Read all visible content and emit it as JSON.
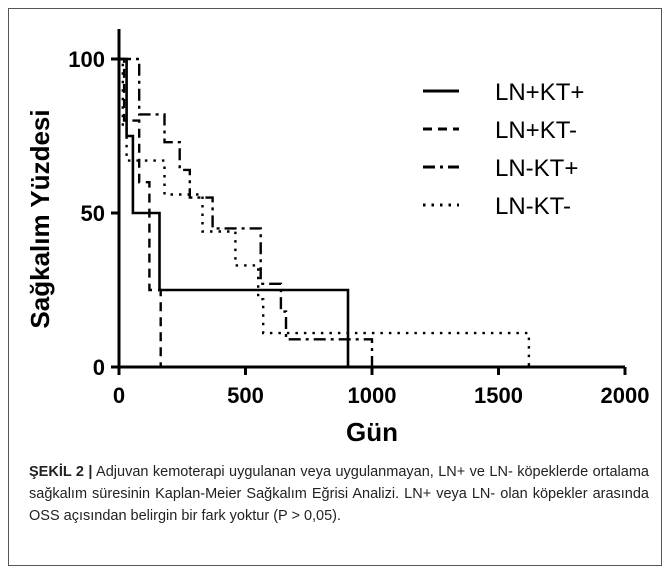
{
  "chart_data": {
    "type": "line",
    "title": "",
    "xlabel": "Gün",
    "ylabel": "Sağkalım Yüzdesi",
    "xlim": [
      0,
      2000
    ],
    "ylim": [
      0,
      100
    ],
    "xticks": [
      "0",
      "500",
      "1000",
      "1500",
      "2000"
    ],
    "yticks": [
      "0",
      "50",
      "100"
    ],
    "grid": false,
    "legend_position": "top-right",
    "series": [
      {
        "name": "LN+KT+",
        "style": "solid",
        "color": "#000000",
        "points": [
          [
            0,
            100
          ],
          [
            30,
            100
          ],
          [
            30,
            75
          ],
          [
            55,
            75
          ],
          [
            55,
            50
          ],
          [
            160,
            50
          ],
          [
            160,
            25
          ],
          [
            905,
            25
          ],
          [
            905,
            0
          ]
        ]
      },
      {
        "name": "LN+KT-",
        "style": "dashed",
        "color": "#000000",
        "points": [
          [
            0,
            100
          ],
          [
            20,
            100
          ],
          [
            20,
            80
          ],
          [
            80,
            80
          ],
          [
            80,
            60
          ],
          [
            120,
            60
          ],
          [
            120,
            25
          ],
          [
            165,
            25
          ],
          [
            165,
            0
          ]
        ]
      },
      {
        "name": "LN-KT+",
        "style": "dashdot",
        "color": "#000000",
        "points": [
          [
            0,
            100
          ],
          [
            80,
            100
          ],
          [
            80,
            82
          ],
          [
            180,
            82
          ],
          [
            180,
            73
          ],
          [
            240,
            73
          ],
          [
            240,
            64
          ],
          [
            280,
            64
          ],
          [
            280,
            55
          ],
          [
            370,
            55
          ],
          [
            370,
            45
          ],
          [
            560,
            45
          ],
          [
            560,
            27
          ],
          [
            640,
            27
          ],
          [
            640,
            18
          ],
          [
            660,
            18
          ],
          [
            660,
            9
          ],
          [
            1000,
            9
          ],
          [
            1000,
            0
          ]
        ]
      },
      {
        "name": "LN-KT-",
        "style": "dotted",
        "color": "#000000",
        "points": [
          [
            0,
            100
          ],
          [
            15,
            100
          ],
          [
            15,
            78
          ],
          [
            30,
            78
          ],
          [
            30,
            67
          ],
          [
            180,
            67
          ],
          [
            180,
            56
          ],
          [
            330,
            56
          ],
          [
            330,
            44
          ],
          [
            460,
            44
          ],
          [
            460,
            33
          ],
          [
            550,
            33
          ],
          [
            550,
            22
          ],
          [
            570,
            22
          ],
          [
            570,
            11
          ],
          [
            1620,
            11
          ],
          [
            1620,
            0
          ]
        ]
      }
    ]
  },
  "caption": {
    "label": "ŞEKİL 2 |",
    "text": " Adjuvan kemoterapi uygulanan veya uygulanmayan, LN+ ve LN- köpeklerde ortalama sağkalım süresinin Kaplan-Meier Sağkalım Eğrisi Analizi. LN+ veya LN- olan köpekler arasında OSS açısından belirgin bir fark yoktur (P > 0,05)."
  }
}
